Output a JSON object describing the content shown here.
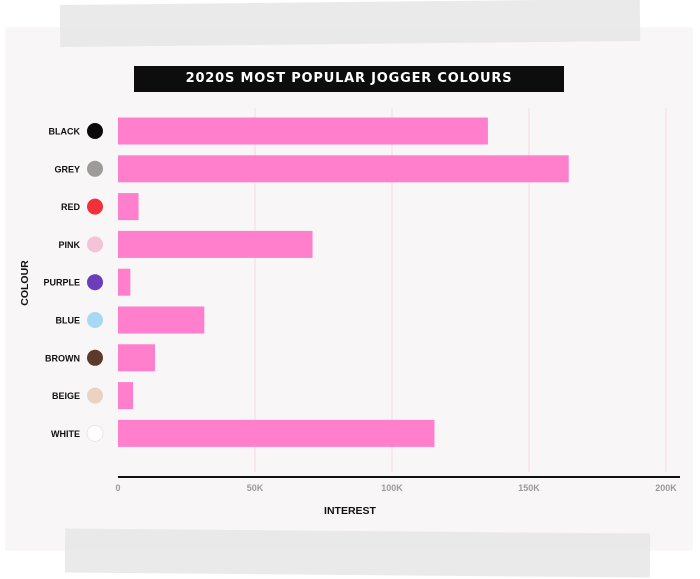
{
  "chart_data": {
    "type": "bar",
    "orientation": "horizontal",
    "title": "2020S MOST POPULAR JOGGER COLOURS",
    "xlabel": "INTEREST",
    "ylabel": "COLOUR",
    "categories": [
      "BLACK",
      "GREY",
      "RED",
      "PINK",
      "PURPLE",
      "BLUE",
      "BROWN",
      "BEIGE",
      "WHITE"
    ],
    "category_colors": [
      "#0a0a0a",
      "#9e9a9a",
      "#f2303a",
      "#f4c3d8",
      "#6a3dbb",
      "#a8d8f4",
      "#5b3a2b",
      "#ead3c3",
      "#ffffff"
    ],
    "values": [
      135000,
      164500,
      7500,
      71000,
      4500,
      31500,
      13500,
      5500,
      115500
    ],
    "xlim": [
      0,
      200000
    ],
    "xticks": [
      0,
      50000,
      100000,
      150000,
      200000
    ],
    "xtick_labels": [
      "0",
      "50K",
      "100K",
      "150K",
      "200K"
    ],
    "bar_color": "#ff7fcc",
    "grid": true,
    "grid_color": "#f6d9e6"
  }
}
